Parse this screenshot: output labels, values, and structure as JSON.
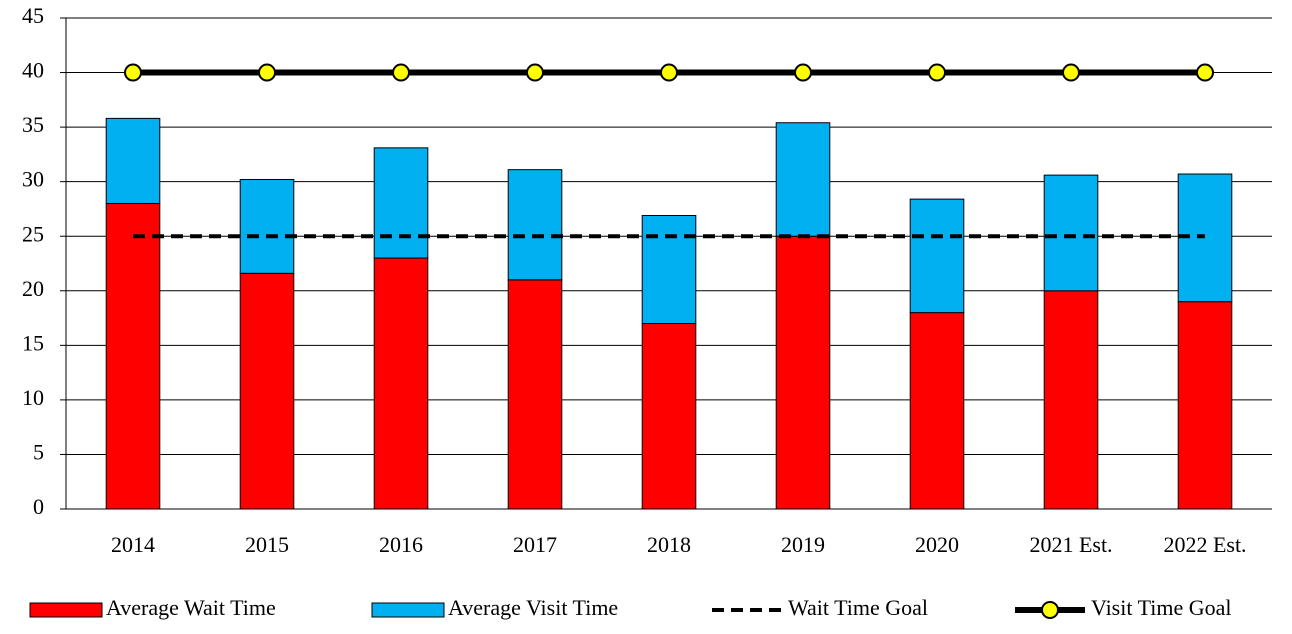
{
  "chart_data": {
    "type": "bar",
    "stacked": true,
    "categories": [
      "2014",
      "2015",
      "2016",
      "2017",
      "2018",
      "2019",
      "2020",
      "2021 Est.",
      "2022 Est."
    ],
    "series": [
      {
        "name": "Average Wait Time",
        "type": "bar",
        "color": "#ff0000",
        "values": [
          28.0,
          21.6,
          23.0,
          21.0,
          17.0,
          25.0,
          18.0,
          20.0,
          19.0
        ]
      },
      {
        "name": "Average Visit Time",
        "type": "bar",
        "color": "#00b0f0",
        "values": [
          7.8,
          8.6,
          10.1,
          10.1,
          9.9,
          10.4,
          10.4,
          10.6,
          11.7
        ]
      },
      {
        "name": "Wait Time Goal",
        "type": "line",
        "color": "#000000",
        "dashed": true,
        "values": [
          25,
          25,
          25,
          25,
          25,
          25,
          25,
          25,
          25
        ]
      },
      {
        "name": "Visit Time Goal",
        "type": "line",
        "color": "#000000",
        "dashed": false,
        "marker_color": "#ffff00",
        "values": [
          40,
          40,
          40,
          40,
          40,
          40,
          40,
          40,
          40
        ]
      }
    ],
    "ylim": [
      0,
      45
    ],
    "yticks": [
      0,
      5,
      10,
      15,
      20,
      25,
      30,
      35,
      40,
      45
    ],
    "grid": true,
    "legend": "bottom"
  }
}
